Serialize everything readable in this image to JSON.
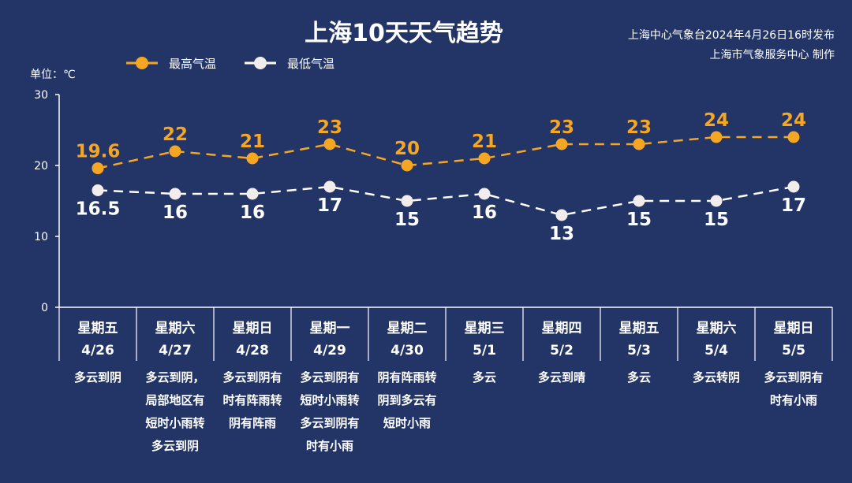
{
  "header": {
    "title": "上海10天天气趋势",
    "source_line1": "上海中心气象台2024年4月26日16时发布",
    "source_line2": "上海市气象服务中心 制作"
  },
  "colors": {
    "background": "#233466",
    "high": "#f5a623",
    "low": "#ffffff",
    "axis": "#ffffff"
  },
  "chart_data": {
    "type": "line",
    "unit_label": "单位：℃",
    "ylim": [
      0,
      30
    ],
    "yticks": [
      0,
      10,
      20,
      30
    ],
    "legend_position": "top-left",
    "grid": false,
    "categories": [
      {
        "weekday": "星期五",
        "date": "4/26",
        "weather": [
          "多云到阴"
        ]
      },
      {
        "weekday": "星期六",
        "date": "4/27",
        "weather": [
          "多云到阴，",
          "局部地区有",
          "短时小雨转",
          "多云到阴"
        ]
      },
      {
        "weekday": "星期日",
        "date": "4/28",
        "weather": [
          "多云到阴有",
          "时有阵雨转",
          "阴有阵雨"
        ]
      },
      {
        "weekday": "星期一",
        "date": "4/29",
        "weather": [
          "多云到阴有",
          "短时小雨转",
          "多云到阴有",
          "时有小雨"
        ]
      },
      {
        "weekday": "星期二",
        "date": "4/30",
        "weather": [
          "阴有阵雨转",
          "阴到多云有",
          "短时小雨"
        ]
      },
      {
        "weekday": "星期三",
        "date": "5/1",
        "weather": [
          "多云"
        ]
      },
      {
        "weekday": "星期四",
        "date": "5/2",
        "weather": [
          "多云到晴"
        ]
      },
      {
        "weekday": "星期五",
        "date": "5/3",
        "weather": [
          "多云"
        ]
      },
      {
        "weekday": "星期六",
        "date": "5/4",
        "weather": [
          "多云转阴"
        ]
      },
      {
        "weekday": "星期日",
        "date": "5/5",
        "weather": [
          "多云到阴有",
          "时有小雨"
        ]
      }
    ],
    "series": [
      {
        "key": "high",
        "name": "最高气温",
        "values": [
          19.6,
          22,
          21,
          23,
          20,
          21,
          23,
          23,
          24,
          24
        ],
        "labels": [
          "19.6",
          "22",
          "21",
          "23",
          "20",
          "21",
          "23",
          "23",
          "24",
          "24"
        ]
      },
      {
        "key": "low",
        "name": "最低气温",
        "values": [
          16.5,
          16,
          16,
          17,
          15,
          16,
          13,
          15,
          15,
          17
        ],
        "labels": [
          "16.5",
          "16",
          "16",
          "17",
          "15",
          "16",
          "13",
          "15",
          "15",
          "17"
        ]
      }
    ]
  }
}
